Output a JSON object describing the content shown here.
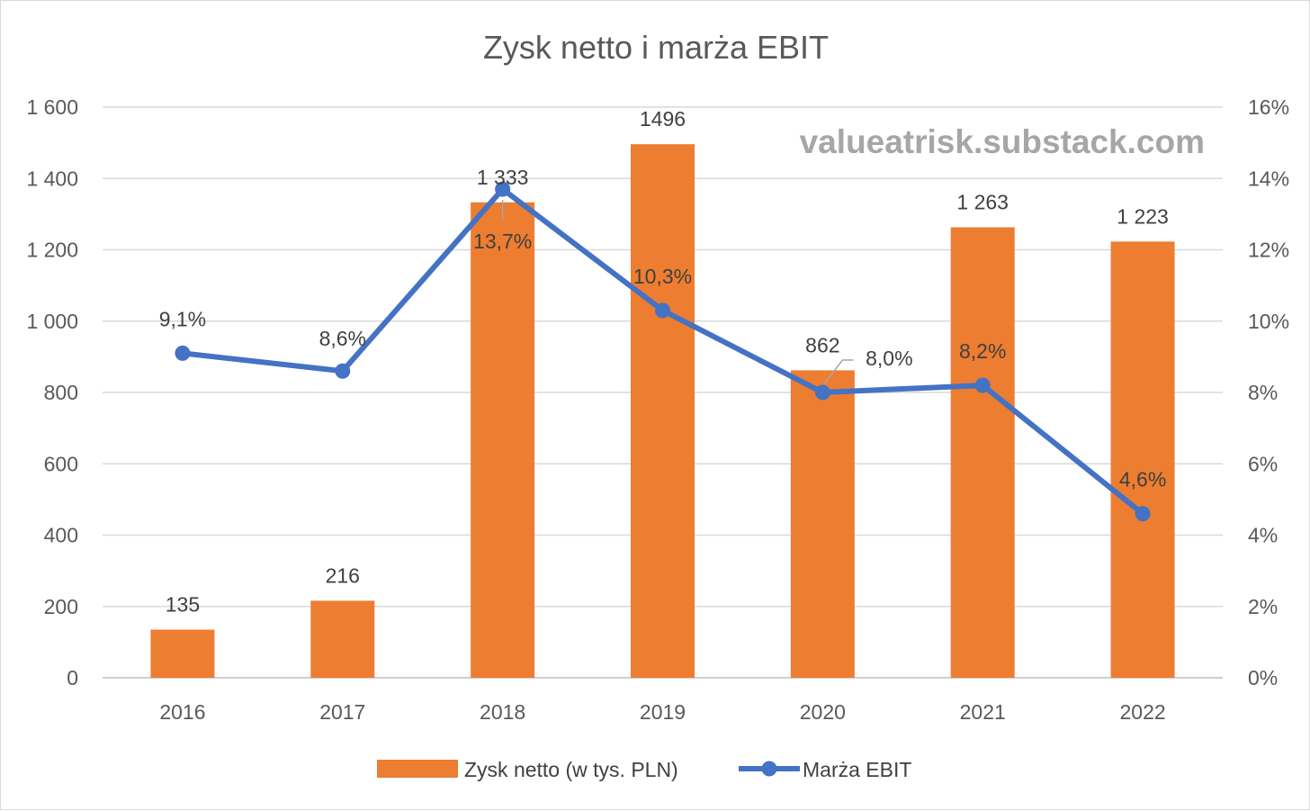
{
  "chart_data": {
    "type": "bar+line",
    "title": "Zysk netto i marża EBIT",
    "watermark": "valueatrisk.substack.com",
    "categories": [
      "2016",
      "2017",
      "2018",
      "2019",
      "2020",
      "2021",
      "2022"
    ],
    "series": [
      {
        "name": "Zysk netto (w tys. PLN)",
        "type": "bar",
        "axis": "left",
        "color": "#ED7D31",
        "values": [
          135,
          216,
          1333,
          1496,
          862,
          1263,
          1223
        ],
        "labels": [
          "135",
          "216",
          "1 333",
          "1496",
          "862",
          "1 263",
          "1 223"
        ]
      },
      {
        "name": "Marża EBIT",
        "type": "line",
        "axis": "right",
        "color": "#4472C4",
        "values": [
          9.1,
          8.6,
          13.7,
          10.3,
          8.0,
          8.2,
          4.6
        ],
        "labels": [
          "9,1%",
          "8,6%",
          "13,7%",
          "10,3%",
          "8,0%",
          "8,2%",
          "4,6%"
        ]
      }
    ],
    "y_left": {
      "range": [
        0,
        1600
      ],
      "ticks": [
        0,
        200,
        400,
        600,
        800,
        1000,
        1200,
        1400,
        1600
      ],
      "tick_labels": [
        "0",
        "200",
        "400",
        "600",
        "800",
        "1 000",
        "1 200",
        "1 400",
        "1 600"
      ]
    },
    "y_right": {
      "range": [
        0,
        16
      ],
      "ticks": [
        0,
        2,
        4,
        6,
        8,
        10,
        12,
        14,
        16
      ],
      "tick_labels": [
        "0%",
        "2%",
        "4%",
        "6%",
        "8%",
        "10%",
        "12%",
        "14%",
        "16%"
      ]
    },
    "grid": true,
    "legend_position": "bottom"
  }
}
